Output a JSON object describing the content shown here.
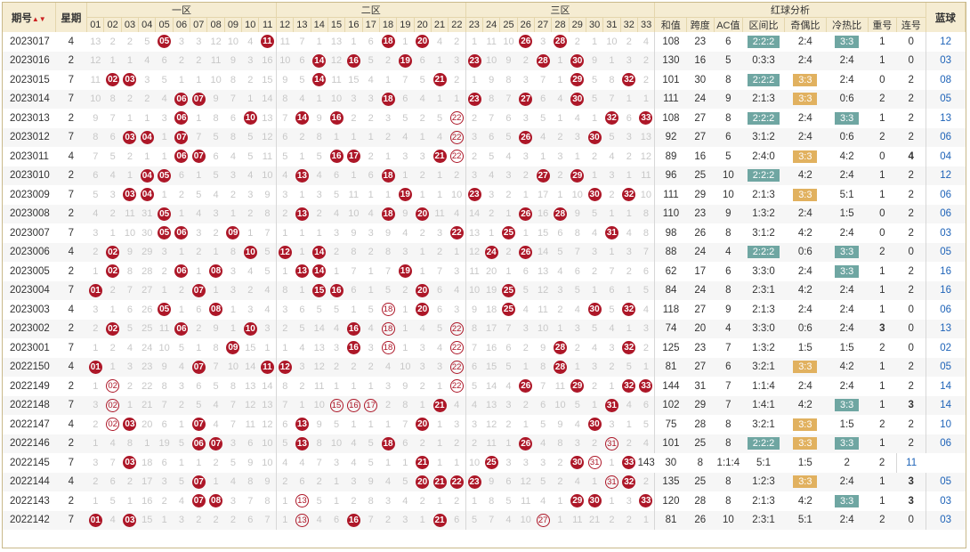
{
  "header": {
    "period": "期号",
    "week": "星期",
    "zone1": "一区",
    "zone2": "二区",
    "zone3": "三区",
    "analysis": "红球分析",
    "blue": "蓝球",
    "sort_icon": "sort-icon",
    "numbers": [
      "01",
      "02",
      "03",
      "04",
      "05",
      "06",
      "07",
      "08",
      "09",
      "10",
      "11",
      "12",
      "13",
      "14",
      "15",
      "16",
      "17",
      "18",
      "19",
      "20",
      "21",
      "22",
      "23",
      "24",
      "25",
      "26",
      "27",
      "28",
      "29",
      "30",
      "31",
      "32",
      "33"
    ],
    "stat_cols": [
      "和值",
      "跨度",
      "AC值",
      "区间比",
      "奇偶比",
      "冷热比",
      "重号",
      "连号"
    ]
  },
  "colors": {
    "ball": "#ad1728",
    "teal": "#6fa6a2",
    "gold": "#e1b15f",
    "header_bg": "#f5ecd2",
    "blue_text": "#1e63b8"
  },
  "rows": [
    {
      "period": "2023017",
      "week": "4",
      "nums": [
        13,
        2,
        2,
        5,
        "●05",
        3,
        3,
        12,
        10,
        4,
        "●11",
        11,
        7,
        1,
        13,
        1,
        6,
        "●18",
        1,
        "●20",
        4,
        2,
        1,
        11,
        10,
        "●26",
        3,
        "●28",
        2,
        1,
        10,
        2,
        4
      ],
      "sum": "108",
      "span": "23",
      "ac": "6",
      "zone": "2:2:2",
      "zc": "teal",
      "oe": "2:4",
      "oc": "",
      "ht": "3:3",
      "hc": "teal",
      "rep": "1",
      "rc": "",
      "con": "0",
      "cc": "",
      "blue": "12"
    },
    {
      "period": "2023016",
      "week": "2",
      "nums": [
        12,
        1,
        1,
        4,
        6,
        2,
        2,
        11,
        9,
        3,
        16,
        10,
        6,
        "●14",
        12,
        "●16",
        5,
        2,
        "●19",
        6,
        1,
        3,
        "●23",
        10,
        9,
        2,
        "●28",
        1,
        "●30",
        9,
        1,
        3,
        2
      ],
      "sum": "130",
      "span": "16",
      "ac": "5",
      "zone": "0:3:3",
      "zc": "",
      "oe": "2:4",
      "oc": "",
      "ht": "2:4",
      "hc": "",
      "rep": "1",
      "rc": "",
      "con": "0",
      "cc": "",
      "blue": "03"
    },
    {
      "period": "2023015",
      "week": "7",
      "nums": [
        11,
        "●02",
        "●03",
        3,
        5,
        1,
        1,
        10,
        8,
        2,
        15,
        9,
        5,
        "●14",
        11,
        15,
        4,
        1,
        7,
        5,
        "●21",
        2,
        1,
        9,
        8,
        3,
        7,
        1,
        "●29",
        5,
        8,
        "●32",
        2
      ],
      "sum": "101",
      "span": "30",
      "ac": "8",
      "zone": "2:2:2",
      "zc": "teal",
      "oe": "3:3",
      "oc": "gold",
      "ht": "2:4",
      "hc": "",
      "rep": "0",
      "rc": "",
      "con": "2",
      "cc": "",
      "blue": "08"
    },
    {
      "period": "2023014",
      "week": "7",
      "nums": [
        10,
        8,
        2,
        2,
        4,
        "●06",
        "●07",
        9,
        7,
        1,
        14,
        8,
        4,
        1,
        10,
        3,
        3,
        "●18",
        6,
        4,
        1,
        1,
        "●23",
        8,
        7,
        "●27",
        6,
        4,
        "●30",
        5,
        7,
        1,
        1
      ],
      "sum": "111",
      "span": "24",
      "ac": "9",
      "zone": "2:1:3",
      "zc": "",
      "oe": "3:3",
      "oc": "gold",
      "ht": "0:6",
      "hc": "",
      "rep": "2",
      "rc": "",
      "con": "2",
      "cc": "",
      "blue": "05"
    },
    {
      "period": "2023013",
      "week": "2",
      "nums": [
        9,
        7,
        1,
        1,
        3,
        "●06",
        1,
        8,
        6,
        "●10",
        13,
        7,
        "●14",
        9,
        "●16",
        2,
        2,
        3,
        5,
        2,
        5,
        "◎22",
        2,
        7,
        6,
        3,
        5,
        1,
        4,
        1,
        "●32",
        6,
        "●33"
      ],
      "sum": "108",
      "span": "27",
      "ac": "8",
      "zone": "2:2:2",
      "zc": "teal",
      "oe": "2:4",
      "oc": "",
      "ht": "3:3",
      "hc": "teal",
      "rep": "1",
      "rc": "",
      "con": "2",
      "cc": "",
      "blue": "13"
    },
    {
      "period": "2023012",
      "week": "7",
      "nums": [
        8,
        6,
        "●03",
        "●04",
        1,
        "●07",
        7,
        5,
        8,
        5,
        12,
        6,
        2,
        8,
        1,
        1,
        1,
        2,
        4,
        1,
        4,
        "◎22",
        3,
        6,
        5,
        "●26",
        4,
        2,
        3,
        "●30",
        5,
        3,
        13
      ],
      "sum": "92",
      "span": "27",
      "ac": "6",
      "zone": "3:1:2",
      "zc": "",
      "oe": "2:4",
      "oc": "",
      "ht": "0:6",
      "hc": "",
      "rep": "2",
      "rc": "",
      "con": "2",
      "cc": "",
      "blue": "06"
    },
    {
      "period": "2023011",
      "week": "4",
      "nums": [
        7,
        5,
        2,
        1,
        1,
        "●06",
        "●07",
        6,
        4,
        5,
        11,
        5,
        1,
        5,
        "●16",
        "●17",
        2,
        1,
        3,
        3,
        "●21",
        "◎22",
        2,
        5,
        4,
        3,
        1,
        3,
        1,
        2,
        4,
        2,
        12
      ],
      "sum": "89",
      "span": "16",
      "ac": "5",
      "zone": "2:4:0",
      "zc": "",
      "oe": "3:3",
      "oc": "gold",
      "ht": "4:2",
      "hc": "",
      "rep": "0",
      "rc": "",
      "con": "4",
      "cc": "grn",
      "blue": "04"
    },
    {
      "period": "2023010",
      "week": "2",
      "nums": [
        6,
        4,
        1,
        "●04",
        "●05",
        6,
        1,
        5,
        3,
        4,
        10,
        4,
        "●13",
        4,
        6,
        1,
        6,
        "●18",
        1,
        2,
        1,
        2,
        3,
        4,
        3,
        2,
        "●27",
        2,
        "●29",
        1,
        3,
        1,
        11
      ],
      "sum": "96",
      "span": "25",
      "ac": "10",
      "zone": "2:2:2",
      "zc": "teal",
      "oe": "4:2",
      "oc": "",
      "ht": "2:4",
      "hc": "",
      "rep": "1",
      "rc": "",
      "con": "2",
      "cc": "",
      "blue": "12"
    },
    {
      "period": "2023009",
      "week": "7",
      "nums": [
        5,
        3,
        "●03",
        "●04",
        1,
        2,
        5,
        4,
        2,
        3,
        9,
        3,
        1,
        3,
        5,
        11,
        1,
        1,
        "●19",
        1,
        1,
        10,
        "●23",
        3,
        2,
        1,
        17,
        1,
        10,
        "●30",
        2,
        "●32",
        10
      ],
      "sum": "111",
      "span": "29",
      "ac": "10",
      "zone": "2:1:3",
      "zc": "",
      "oe": "3:3",
      "oc": "gold",
      "ht": "5:1",
      "hc": "",
      "rep": "1",
      "rc": "",
      "con": "2",
      "cc": "",
      "blue": "06"
    },
    {
      "period": "2023008",
      "week": "2",
      "nums": [
        4,
        2,
        11,
        31,
        "●05",
        1,
        4,
        3,
        1,
        2,
        8,
        2,
        "●13",
        2,
        4,
        10,
        4,
        "●18",
        9,
        "●20",
        11,
        4,
        14,
        2,
        1,
        "●26",
        16,
        "●28",
        9,
        5,
        1,
        1,
        8
      ],
      "sum": "110",
      "span": "23",
      "ac": "9",
      "zone": "1:3:2",
      "zc": "",
      "oe": "2:4",
      "oc": "",
      "ht": "1:5",
      "hc": "",
      "rep": "0",
      "rc": "",
      "con": "2",
      "cc": "",
      "blue": "06"
    },
    {
      "period": "2023007",
      "week": "7",
      "nums": [
        3,
        1,
        10,
        30,
        "●05",
        "●06",
        3,
        2,
        "●09",
        1,
        7,
        1,
        1,
        1,
        3,
        9,
        3,
        9,
        4,
        2,
        3,
        "●22",
        13,
        1,
        "●25",
        1,
        15,
        6,
        8,
        4,
        "●31",
        4,
        8
      ],
      "sum": "98",
      "span": "26",
      "ac": "8",
      "zone": "3:1:2",
      "zc": "",
      "oe": "4:2",
      "oc": "",
      "ht": "2:4",
      "hc": "",
      "rep": "0",
      "rc": "",
      "con": "2",
      "cc": "",
      "blue": "03"
    },
    {
      "period": "2023006",
      "week": "4",
      "nums": [
        2,
        "●02",
        9,
        29,
        3,
        1,
        2,
        1,
        8,
        "●10",
        5,
        "●12",
        1,
        "●14",
        2,
        8,
        2,
        8,
        3,
        1,
        2,
        1,
        12,
        "●24",
        2,
        "●26",
        14,
        5,
        7,
        3,
        1,
        3,
        7
      ],
      "sum": "88",
      "span": "24",
      "ac": "4",
      "zone": "2:2:2",
      "zc": "teal",
      "oe": "0:6",
      "oc": "",
      "ht": "3:3",
      "hc": "teal",
      "rep": "2",
      "rc": "",
      "con": "0",
      "cc": "",
      "blue": "05"
    },
    {
      "period": "2023005",
      "week": "2",
      "nums": [
        1,
        "●02",
        8,
        28,
        2,
        "●06",
        1,
        "●08",
        3,
        4,
        5,
        1,
        "●13",
        "●14",
        1,
        7,
        1,
        7,
        "●19",
        1,
        7,
        3,
        11,
        20,
        1,
        6,
        13,
        4,
        6,
        2,
        7,
        2,
        6
      ],
      "sum": "62",
      "span": "17",
      "ac": "6",
      "zone": "3:3:0",
      "zc": "",
      "oe": "2:4",
      "oc": "",
      "ht": "3:3",
      "hc": "teal",
      "rep": "1",
      "rc": "",
      "con": "2",
      "cc": "",
      "blue": "16"
    },
    {
      "period": "2023004",
      "week": "7",
      "nums": [
        "●01",
        2,
        7,
        27,
        1,
        2,
        "●07",
        1,
        3,
        2,
        4,
        8,
        1,
        "●15",
        "●16",
        6,
        1,
        5,
        2,
        "●20",
        6,
        4,
        10,
        19,
        "●25",
        5,
        12,
        3,
        5,
        1,
        6,
        1,
        5
      ],
      "sum": "84",
      "span": "24",
      "ac": "8",
      "zone": "2:3:1",
      "zc": "",
      "oe": "4:2",
      "oc": "",
      "ht": "2:4",
      "hc": "",
      "rep": "1",
      "rc": "",
      "con": "2",
      "cc": "",
      "blue": "16"
    },
    {
      "period": "2023003",
      "week": "4",
      "nums": [
        3,
        1,
        6,
        26,
        "●05",
        1,
        6,
        "●08",
        1,
        3,
        4,
        3,
        6,
        5,
        5,
        1,
        5,
        "◎18",
        1,
        "●20",
        6,
        3,
        9,
        18,
        "●25",
        4,
        11,
        2,
        4,
        "●30",
        5,
        "●32",
        4
      ],
      "sum": "118",
      "span": "27",
      "ac": "9",
      "zone": "2:1:3",
      "zc": "",
      "oe": "2:4",
      "oc": "",
      "ht": "2:4",
      "hc": "",
      "rep": "1",
      "rc": "",
      "con": "0",
      "cc": "",
      "blue": "06"
    },
    {
      "period": "2023002",
      "week": "2",
      "nums": [
        2,
        "●02",
        5,
        25,
        11,
        "●06",
        2,
        9,
        1,
        "●10",
        3,
        2,
        5,
        14,
        4,
        "●16",
        4,
        "◎18",
        1,
        4,
        5,
        "◎22",
        8,
        17,
        7,
        3,
        10,
        1,
        3,
        5,
        4,
        1,
        3
      ],
      "sum": "74",
      "span": "20",
      "ac": "4",
      "zone": "3:3:0",
      "zc": "",
      "oe": "0:6",
      "oc": "",
      "ht": "2:4",
      "hc": "",
      "rep": "3",
      "rc": "red",
      "con": "0",
      "cc": "",
      "blue": "13"
    },
    {
      "period": "2023001",
      "week": "7",
      "nums": [
        1,
        2,
        4,
        24,
        10,
        5,
        1,
        8,
        "●09",
        15,
        1,
        1,
        4,
        13,
        3,
        "●16",
        3,
        "◎18",
        1,
        3,
        4,
        "◎22",
        7,
        16,
        6,
        2,
        9,
        "●28",
        2,
        4,
        3,
        "●32",
        2
      ],
      "sum": "125",
      "span": "23",
      "ac": "7",
      "zone": "1:3:2",
      "zc": "",
      "oe": "1:5",
      "oc": "",
      "ht": "1:5",
      "hc": "",
      "rep": "2",
      "rc": "",
      "con": "0",
      "cc": "",
      "blue": "02"
    },
    {
      "period": "2022150",
      "week": "4",
      "nums": [
        "●01",
        1,
        3,
        23,
        9,
        4,
        "●07",
        7,
        10,
        14,
        "●11",
        "●12",
        3,
        12,
        2,
        2,
        2,
        4,
        10,
        3,
        3,
        "◎22",
        6,
        15,
        5,
        1,
        8,
        "●28",
        1,
        3,
        2,
        5,
        1
      ],
      "sum": "81",
      "span": "27",
      "ac": "6",
      "zone": "3:2:1",
      "zc": "",
      "oe": "3:3",
      "oc": "gold",
      "ht": "4:2",
      "hc": "",
      "rep": "1",
      "rc": "",
      "con": "2",
      "cc": "",
      "blue": "05"
    },
    {
      "period": "2022149",
      "week": "2",
      "nums": [
        1,
        "◎02",
        2,
        22,
        8,
        3,
        6,
        5,
        8,
        13,
        14,
        8,
        2,
        11,
        1,
        1,
        1,
        3,
        9,
        2,
        1,
        "◎22",
        5,
        14,
        4,
        "●26",
        7,
        11,
        "●29",
        2,
        1,
        "●32",
        "●33"
      ],
      "sum": "144",
      "span": "31",
      "ac": "7",
      "zone": "1:1:4",
      "zc": "",
      "oe": "2:4",
      "oc": "",
      "ht": "2:4",
      "hc": "",
      "rep": "1",
      "rc": "",
      "con": "2",
      "cc": "",
      "blue": "14"
    },
    {
      "period": "2022148",
      "week": "7",
      "nums": [
        3,
        "◎02",
        1,
        21,
        7,
        2,
        5,
        4,
        7,
        12,
        13,
        7,
        1,
        10,
        "◎15",
        "◎16",
        "◎17",
        2,
        8,
        1,
        "●21",
        4,
        4,
        13,
        3,
        2,
        6,
        10,
        5,
        1,
        "●31",
        4,
        6
      ],
      "sum": "102",
      "span": "29",
      "ac": "7",
      "zone": "1:4:1",
      "zc": "",
      "oe": "4:2",
      "oc": "",
      "ht": "3:3",
      "hc": "teal",
      "rep": "1",
      "rc": "",
      "con": "3",
      "cc": "grn",
      "blue": "14"
    },
    {
      "period": "2022147",
      "week": "4",
      "nums": [
        2,
        "◎02",
        "●03",
        20,
        6,
        1,
        "●07",
        4,
        7,
        11,
        12,
        6,
        "●13",
        9,
        5,
        1,
        1,
        1,
        7,
        "●20",
        1,
        3,
        3,
        12,
        2,
        1,
        5,
        9,
        4,
        "●30",
        3,
        1,
        5
      ],
      "sum": "75",
      "span": "28",
      "ac": "8",
      "zone": "3:2:1",
      "zc": "",
      "oe": "3:3",
      "oc": "gold",
      "ht": "1:5",
      "hc": "",
      "rep": "2",
      "rc": "",
      "con": "2",
      "cc": "",
      "blue": "10"
    },
    {
      "period": "2022146",
      "week": "2",
      "nums": [
        1,
        4,
        8,
        1,
        19,
        5,
        "●06",
        "●07",
        3,
        6,
        10,
        5,
        "●13",
        8,
        10,
        4,
        5,
        "●18",
        6,
        2,
        1,
        2,
        2,
        11,
        1,
        "●26",
        4,
        8,
        3,
        2,
        "◎31",
        2,
        4
      ],
      "sum": "101",
      "span": "25",
      "ac": "8",
      "zone": "2:2:2",
      "zc": "teal",
      "oe": "3:3",
      "oc": "gold",
      "ht": "3:3",
      "hc": "teal",
      "rep": "1",
      "rc": "",
      "con": "2",
      "cc": "",
      "blue": "06"
    },
    {
      "period": "2022145",
      "week": "7",
      "nums": [
        3,
        7,
        "●03",
        18,
        6,
        1,
        1,
        2,
        5,
        9,
        10,
        4,
        4,
        7,
        3,
        4,
        5,
        1,
        1,
        "●21",
        1,
        1,
        10,
        "●25",
        3,
        3,
        3,
        2,
        "●30",
        "◎31",
        1,
        "●33"
      ],
      "sum": "143",
      "span": "30",
      "ac": "8",
      "zone": "1:1:4",
      "zc": "",
      "oe": "5:1",
      "oc": "",
      "ht": "1:5",
      "hc": "",
      "rep": "2",
      "rc": "",
      "con": "2",
      "cc": "",
      "blue": "11"
    },
    {
      "period": "2022144",
      "week": "4",
      "nums": [
        2,
        6,
        2,
        17,
        3,
        5,
        "●07",
        1,
        4,
        8,
        9,
        2,
        6,
        2,
        1,
        3,
        9,
        4,
        5,
        "●20",
        "●21",
        "●22",
        "●23",
        9,
        6,
        12,
        5,
        2,
        4,
        1,
        "◎31",
        "●32",
        2
      ],
      "sum": "135",
      "span": "25",
      "ac": "8",
      "zone": "1:2:3",
      "zc": "",
      "oe": "3:3",
      "oc": "gold",
      "ht": "2:4",
      "hc": "",
      "rep": "1",
      "rc": "",
      "con": "3",
      "cc": "grn",
      "blue": "05"
    },
    {
      "period": "2022143",
      "week": "2",
      "nums": [
        1,
        5,
        1,
        16,
        2,
        4,
        "●07",
        "●08",
        3,
        7,
        8,
        1,
        "◎13",
        5,
        1,
        2,
        8,
        3,
        4,
        2,
        1,
        2,
        1,
        8,
        5,
        11,
        4,
        1,
        "●29",
        "●30",
        1,
        3,
        "●33"
      ],
      "sum": "120",
      "span": "28",
      "ac": "8",
      "zone": "2:1:3",
      "zc": "",
      "oe": "4:2",
      "oc": "",
      "ht": "3:3",
      "hc": "teal",
      "rep": "1",
      "rc": "",
      "con": "3",
      "cc": "grn",
      "blue": "03"
    },
    {
      "period": "2022142",
      "week": "7",
      "nums": [
        "●01",
        4,
        "●03",
        15,
        1,
        3,
        2,
        2,
        2,
        6,
        7,
        1,
        "◎13",
        4,
        6,
        "●16",
        7,
        2,
        3,
        1,
        "●21",
        6,
        5,
        7,
        4,
        10,
        "◎27",
        1,
        11,
        21,
        2,
        2,
        1
      ],
      "sum": "81",
      "span": "26",
      "ac": "10",
      "zone": "2:3:1",
      "zc": "",
      "oe": "5:1",
      "oc": "",
      "ht": "2:4",
      "hc": "",
      "rep": "2",
      "rc": "",
      "con": "0",
      "cc": "",
      "blue": "03"
    }
  ]
}
